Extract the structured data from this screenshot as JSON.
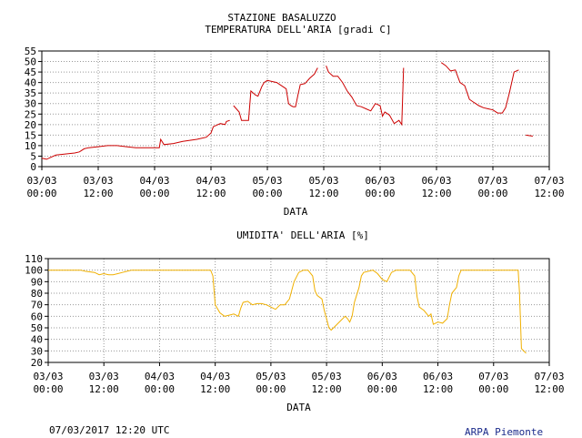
{
  "header": {
    "station": "STAZIONE BASALUZZO",
    "temperature_title": "TEMPERATURA DELL'ARIA [gradi C]",
    "humidity_title": "UMIDITA' DELL'ARIA [%]"
  },
  "footer": {
    "timestamp": "07/03/2017 12:20 UTC",
    "organization": "ARPA Piemonte"
  },
  "colors": {
    "temperature_line": "#cc0000",
    "humidity_line": "#f0b000",
    "grid": "#999999"
  },
  "chart_data": [
    {
      "type": "line",
      "title": "TEMPERATURA DELL'ARIA [gradi C]",
      "xlabel": "DATA",
      "ylabel": "",
      "x_unit": "hours from 03/03 00:00",
      "xlim": [
        0,
        108
      ],
      "ylim": [
        0,
        55
      ],
      "yticks": [
        0,
        5,
        10,
        15,
        20,
        25,
        30,
        35,
        40,
        45,
        50,
        55
      ],
      "xticks": [
        {
          "x": 0,
          "date": "03/03",
          "time": "00:00"
        },
        {
          "x": 12,
          "date": "03/03",
          "time": "12:00"
        },
        {
          "x": 24,
          "date": "04/03",
          "time": "00:00"
        },
        {
          "x": 36,
          "date": "04/03",
          "time": "12:00"
        },
        {
          "x": 48,
          "date": "05/03",
          "time": "00:00"
        },
        {
          "x": 60,
          "date": "05/03",
          "time": "12:00"
        },
        {
          "x": 72,
          "date": "06/03",
          "time": "00:00"
        },
        {
          "x": 84,
          "date": "06/03",
          "time": "12:00"
        },
        {
          "x": 96,
          "date": "07/03",
          "time": "00:00"
        },
        {
          "x": 108,
          "date": "07/03",
          "time": "12:00"
        }
      ],
      "grid": true,
      "series": [
        {
          "segments": [
            [
              [
                0,
                4
              ],
              [
                1,
                3.5
              ],
              [
                2,
                4.5
              ],
              [
                3,
                5.5
              ],
              [
                5,
                6
              ],
              [
                7,
                6.5
              ],
              [
                8,
                7
              ],
              [
                9,
                8.5
              ],
              [
                10,
                9
              ],
              [
                12,
                9.5
              ],
              [
                14,
                10
              ],
              [
                16,
                10
              ],
              [
                18,
                9.5
              ],
              [
                20,
                9
              ],
              [
                22,
                9
              ],
              [
                24,
                9
              ],
              [
                25,
                9
              ],
              [
                25.3,
                13
              ],
              [
                26,
                10.5
              ],
              [
                28,
                11
              ],
              [
                30,
                12
              ],
              [
                33,
                13
              ],
              [
                35,
                14
              ],
              [
                36,
                16
              ],
              [
                36.5,
                19
              ],
              [
                38,
                20.5
              ],
              [
                39,
                20
              ],
              [
                39.3,
                21.5
              ],
              [
                40,
                22
              ]
            ],
            [
              [
                40.8,
                29
              ],
              [
                42,
                26
              ],
              [
                42.5,
                22
              ],
              [
                43.5,
                22
              ],
              [
                44,
                22
              ],
              [
                44.5,
                36
              ],
              [
                45.5,
                34
              ],
              [
                46,
                33.5
              ],
              [
                46.8,
                38
              ],
              [
                47.3,
                40
              ],
              [
                48,
                41
              ],
              [
                49,
                40.5
              ],
              [
                50,
                40
              ],
              [
                51,
                38.5
              ],
              [
                52,
                37
              ],
              [
                52.5,
                30
              ],
              [
                53,
                29
              ],
              [
                53.5,
                28.5
              ],
              [
                54,
                28.5
              ],
              [
                54.5,
                34
              ],
              [
                55,
                39
              ],
              [
                56,
                39.5
              ],
              [
                57,
                42
              ],
              [
                58,
                44
              ],
              [
                58.7,
                47
              ]
            ],
            [
              [
                60.5,
                48
              ],
              [
                61,
                45
              ],
              [
                62,
                43
              ],
              [
                63,
                43
              ],
              [
                64,
                40
              ],
              [
                65,
                36
              ],
              [
                66,
                33
              ],
              [
                67,
                29
              ],
              [
                68,
                28.5
              ],
              [
                69,
                27.5
              ],
              [
                70,
                26.5
              ],
              [
                71,
                30
              ],
              [
                72,
                29
              ],
              [
                72.5,
                24
              ],
              [
                73,
                26
              ],
              [
                74,
                24.5
              ],
              [
                75,
                20.5
              ],
              [
                76,
                22
              ],
              [
                76.6,
                20
              ],
              [
                77,
                47
              ]
            ],
            [
              [
                85,
                49.5
              ],
              [
                86,
                48
              ],
              [
                87,
                45.5
              ],
              [
                88,
                46
              ],
              [
                89,
                40
              ],
              [
                90,
                38.5
              ],
              [
                91,
                32
              ],
              [
                92,
                30.5
              ],
              [
                93,
                29
              ],
              [
                94,
                28
              ],
              [
                95,
                27.5
              ],
              [
                96,
                27
              ],
              [
                97,
                25.5
              ],
              [
                98,
                25.5
              ],
              [
                98.7,
                28
              ],
              [
                99.5,
                35
              ],
              [
                100,
                40
              ],
              [
                100.5,
                45
              ],
              [
                101.5,
                46
              ]
            ],
            [
              [
                103,
                15
              ],
              [
                104.5,
                14.5
              ]
            ]
          ]
        }
      ]
    },
    {
      "type": "line",
      "title": "UMIDITA' DELL'ARIA [%]",
      "xlabel": "DATA",
      "ylabel": "",
      "x_unit": "hours from 03/03 00:00",
      "xlim": [
        0,
        108
      ],
      "ylim": [
        20,
        110
      ],
      "yticks": [
        20,
        30,
        40,
        50,
        60,
        70,
        80,
        90,
        100,
        110
      ],
      "xticks": [
        {
          "x": 0,
          "date": "03/03",
          "time": "00:00"
        },
        {
          "x": 12,
          "date": "03/03",
          "time": "12:00"
        },
        {
          "x": 24,
          "date": "04/03",
          "time": "00:00"
        },
        {
          "x": 36,
          "date": "04/03",
          "time": "12:00"
        },
        {
          "x": 48,
          "date": "05/03",
          "time": "00:00"
        },
        {
          "x": 60,
          "date": "05/03",
          "time": "12:00"
        },
        {
          "x": 72,
          "date": "06/03",
          "time": "00:00"
        },
        {
          "x": 84,
          "date": "06/03",
          "time": "12:00"
        },
        {
          "x": 96,
          "date": "07/03",
          "time": "00:00"
        },
        {
          "x": 108,
          "date": "07/03",
          "time": "12:00"
        }
      ],
      "grid": true,
      "series": [
        {
          "segments": [
            [
              [
                0,
                100
              ],
              [
                5,
                100
              ],
              [
                7,
                100
              ],
              [
                8,
                99
              ],
              [
                10,
                98
              ],
              [
                11,
                96
              ],
              [
                12,
                97
              ],
              [
                13,
                96
              ],
              [
                14,
                96
              ],
              [
                15,
                97
              ],
              [
                16,
                98
              ],
              [
                17,
                99
              ],
              [
                18,
                100
              ],
              [
                24,
                100
              ],
              [
                30,
                100
              ],
              [
                35,
                100
              ],
              [
                35.5,
                95
              ],
              [
                36,
                70
              ],
              [
                37,
                63
              ],
              [
                38,
                60
              ],
              [
                39,
                61
              ],
              [
                40,
                62
              ],
              [
                41,
                60
              ],
              [
                41.5,
                67
              ],
              [
                42,
                72
              ],
              [
                43,
                73
              ],
              [
                44,
                70
              ],
              [
                45,
                71
              ],
              [
                46,
                71
              ],
              [
                47,
                70
              ],
              [
                48,
                68
              ],
              [
                49,
                66
              ],
              [
                50,
                70
              ],
              [
                51,
                70
              ],
              [
                52,
                75
              ],
              [
                53,
                90
              ],
              [
                54,
                98
              ],
              [
                55,
                100
              ],
              [
                56,
                100
              ],
              [
                57,
                95
              ],
              [
                57.5,
                82
              ],
              [
                58,
                78
              ],
              [
                59,
                75
              ],
              [
                59.5,
                65
              ],
              [
                60,
                58
              ],
              [
                60.5,
                50
              ],
              [
                61,
                48
              ],
              [
                62,
                52
              ],
              [
                63,
                56
              ],
              [
                64,
                60
              ],
              [
                64.5,
                58
              ],
              [
                65,
                55
              ],
              [
                65.5,
                60
              ],
              [
                66,
                72
              ],
              [
                67,
                85
              ],
              [
                67.5,
                95
              ],
              [
                68,
                98
              ],
              [
                70,
                100
              ],
              [
                71,
                97
              ],
              [
                72,
                92
              ],
              [
                73,
                90
              ],
              [
                74,
                98
              ],
              [
                75,
                100
              ],
              [
                76,
                100
              ],
              [
                78,
                100
              ],
              [
                79,
                95
              ],
              [
                79.5,
                77
              ],
              [
                80,
                68
              ],
              [
                81,
                65
              ],
              [
                82,
                60
              ],
              [
                82.5,
                62
              ],
              [
                83,
                53
              ],
              [
                84,
                55
              ],
              [
                85,
                54
              ],
              [
                86,
                58
              ],
              [
                86.5,
                70
              ],
              [
                87,
                80
              ],
              [
                88,
                85
              ],
              [
                88.5,
                95
              ],
              [
                89,
                100
              ],
              [
                92,
                100
              ],
              [
                96,
                100
              ],
              [
                100,
                100
              ],
              [
                101.3,
                100
              ],
              [
                101.6,
                80
              ],
              [
                102,
                32
              ],
              [
                103,
                28
              ]
            ]
          ]
        }
      ]
    }
  ]
}
